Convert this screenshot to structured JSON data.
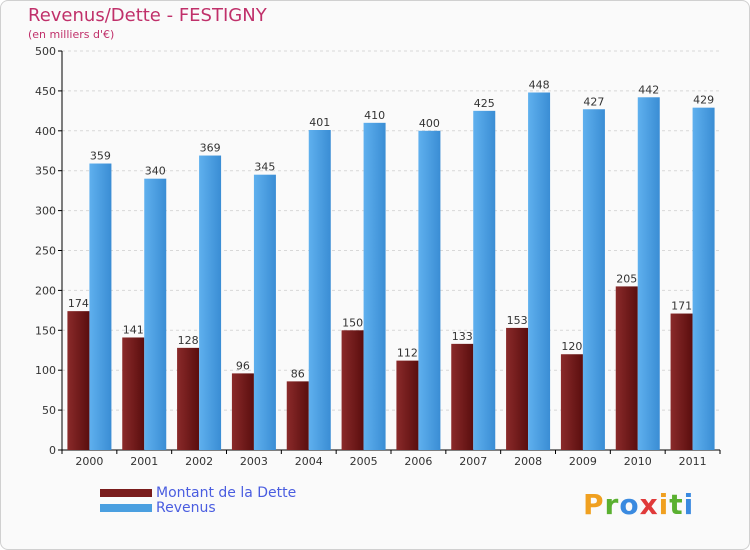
{
  "header": {
    "title": "Revenus/Dette - FESTIGNY",
    "subtitle": "(en milliers d'€)"
  },
  "colors": {
    "dette": "#7a1c1c",
    "revenus": "#4a9fe0",
    "title": "#c0306a",
    "legend_text": "#4a5de0"
  },
  "legend": {
    "dette_label": "Montant de la Dette",
    "revenus_label": "Revenus"
  },
  "logo": {
    "text": "Proxiti"
  },
  "chart_data": {
    "type": "bar",
    "title": "Revenus/Dette - FESTIGNY",
    "subtitle": "(en milliers d'€)",
    "categories": [
      "2000",
      "2001",
      "2002",
      "2003",
      "2004",
      "2005",
      "2006",
      "2007",
      "2008",
      "2009",
      "2010",
      "2011"
    ],
    "series": [
      {
        "name": "Montant de la Dette",
        "values": [
          174,
          141,
          128,
          96,
          86,
          150,
          112,
          133,
          153,
          120,
          205,
          171
        ]
      },
      {
        "name": "Revenus",
        "values": [
          359,
          340,
          369,
          345,
          401,
          410,
          400,
          425,
          448,
          427,
          442,
          429
        ]
      }
    ],
    "ylim": [
      0,
      500
    ],
    "yticks": [
      0,
      50,
      100,
      150,
      200,
      250,
      300,
      350,
      400,
      450,
      500
    ],
    "grid": true,
    "legend_position": "bottom-left"
  }
}
